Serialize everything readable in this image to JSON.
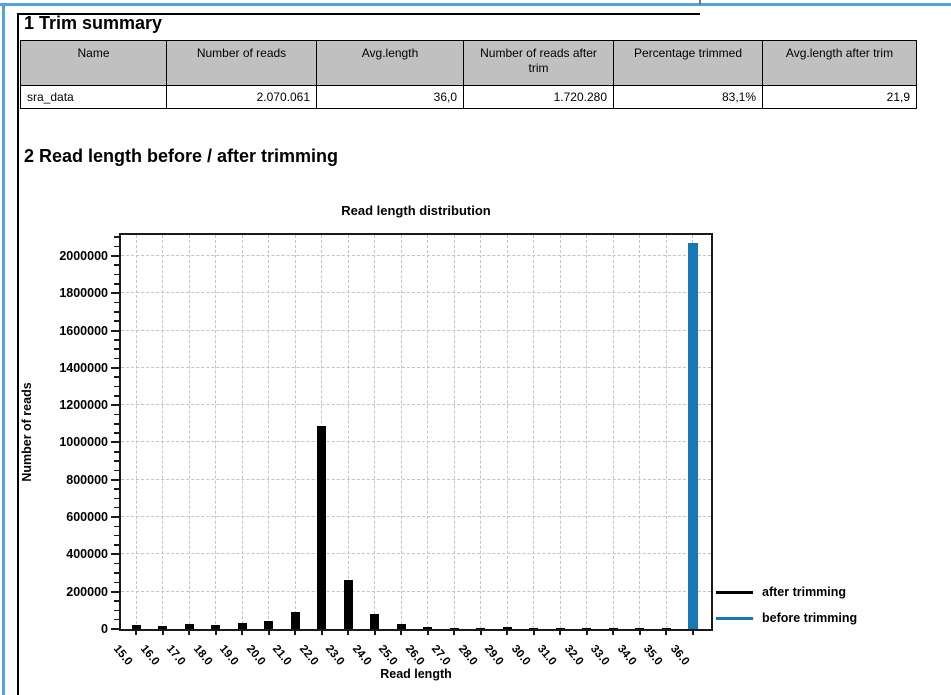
{
  "headings": {
    "trim_summary": "1 Trim summary",
    "read_length": "2 Read length before / after trimming"
  },
  "table": {
    "headers": [
      "Name",
      "Number of reads",
      "Avg.length",
      "Number of reads after trim",
      "Percentage trimmed",
      "Avg.length after trim"
    ],
    "rows": [
      [
        "sra_data",
        "2.070.061",
        "36,0",
        "1.720.280",
        "83,1%",
        "21,9"
      ]
    ]
  },
  "chart_data": {
    "type": "bar",
    "title": "Read length distribution",
    "xlabel": "Read length",
    "ylabel": "Number of reads",
    "categories": [
      "15.0",
      "16.0",
      "17.0",
      "18.0",
      "19.0",
      "20.0",
      "21.0",
      "22.0",
      "23.0",
      "24.0",
      "25.0",
      "26.0",
      "27.0",
      "28.0",
      "29.0",
      "30.0",
      "31.0",
      "32.0",
      "33.0",
      "34.0",
      "35.0",
      "36.0"
    ],
    "series": [
      {
        "name": "after trimming",
        "color": "#000000",
        "values": [
          20000,
          18000,
          26000,
          21000,
          30000,
          42000,
          90000,
          1090000,
          265000,
          80000,
          25000,
          12000,
          7000,
          7000,
          9000,
          2000,
          1000,
          1000,
          1000,
          1000,
          1000,
          0
        ]
      },
      {
        "name": "before trimming",
        "color": "#1778b5",
        "values": [
          0,
          0,
          0,
          0,
          0,
          0,
          0,
          0,
          0,
          0,
          0,
          0,
          0,
          0,
          0,
          0,
          0,
          0,
          0,
          0,
          0,
          2070061
        ]
      }
    ],
    "ylim": [
      0,
      2112000
    ],
    "yticks": [
      0,
      200000,
      400000,
      600000,
      800000,
      1000000,
      1200000,
      1400000,
      1600000,
      1800000,
      2000000
    ],
    "minor_tick_step": 50000,
    "grid": true,
    "legend_position": "right"
  },
  "colors": {
    "frame_blue": "#55a1dc",
    "bar_blue": "#1778b5",
    "header_gray": "#c0c0c0",
    "grid_gray": "#c4c4c4"
  }
}
